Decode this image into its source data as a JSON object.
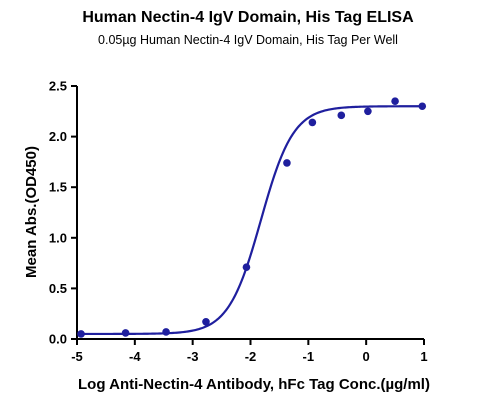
{
  "chart_data": {
    "type": "scatter",
    "title": "Human Nectin-4 IgV Domain, His Tag ELISA",
    "subtitle": "0.05µg Human Nectin-4 IgV Domain, His Tag Per Well",
    "xlabel": "Log Anti-Nectin-4 Antibody, hFc Tag Conc.(µg/ml)",
    "ylabel": "Mean Abs.(OD450)",
    "xlim": [
      -5,
      1
    ],
    "ylim": [
      0,
      2.5
    ],
    "x_ticks": [
      "-5",
      "-4",
      "-3",
      "-2",
      "-1",
      "0",
      "1"
    ],
    "y_ticks": [
      "0.0",
      "0.5",
      "1.0",
      "1.5",
      "2.0",
      "2.5"
    ],
    "grid": false,
    "color": "#1f1f9e",
    "series": [
      {
        "x": [
          -4.93,
          -4.16,
          -3.46,
          -2.77,
          -2.07,
          -1.37,
          -0.93,
          -0.43,
          0.03,
          0.5,
          0.97
        ],
        "y": [
          0.05,
          0.06,
          0.07,
          0.17,
          0.71,
          1.74,
          2.14,
          2.21,
          2.25,
          2.35,
          2.3
        ]
      }
    ],
    "fit": {
      "model": "4PL",
      "bottom": 0.05,
      "top": 2.3,
      "logEC50": -1.82,
      "hill": 1.55
    }
  }
}
